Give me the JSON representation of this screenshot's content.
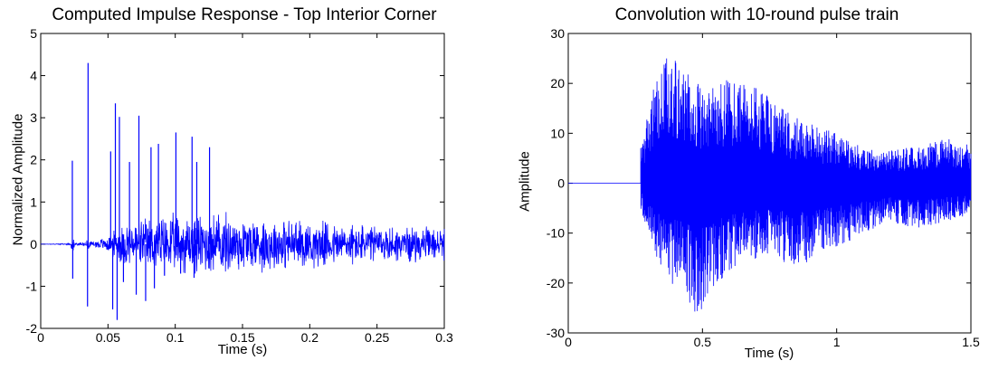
{
  "chart_data": [
    {
      "type": "line",
      "title": "Computed Impulse Response - Top Interior Corner",
      "xlabel": "Time (s)",
      "ylabel": "Normalized Amplitude",
      "xlim": [
        0,
        0.3
      ],
      "ylim": [
        -2,
        5
      ],
      "xticks": [
        "0",
        "0.05",
        "0.1",
        "0.15",
        "0.2",
        "0.25",
        "0.3"
      ],
      "yticks": [
        "-2",
        "-1",
        "0",
        "1",
        "2",
        "3",
        "4",
        "5"
      ],
      "grid": false,
      "color": "#0000ff",
      "series": [
        {
          "spikes": [
            {
              "x": 0.0235,
              "y": 1.98
            },
            {
              "x": 0.0238,
              "y": -0.82
            },
            {
              "x": 0.0352,
              "y": 4.3
            },
            {
              "x": 0.0348,
              "y": -1.48
            },
            {
              "x": 0.052,
              "y": 2.2
            },
            {
              "x": 0.0535,
              "y": -1.55
            },
            {
              "x": 0.0555,
              "y": 3.34
            },
            {
              "x": 0.0568,
              "y": -1.8
            },
            {
              "x": 0.0585,
              "y": 3.02
            },
            {
              "x": 0.0615,
              "y": -0.9
            },
            {
              "x": 0.066,
              "y": 1.95
            },
            {
              "x": 0.071,
              "y": -1.2
            },
            {
              "x": 0.073,
              "y": 3.05
            },
            {
              "x": 0.078,
              "y": -1.35
            },
            {
              "x": 0.082,
              "y": 2.3
            },
            {
              "x": 0.0845,
              "y": -1.05
            },
            {
              "x": 0.0875,
              "y": 2.38
            },
            {
              "x": 0.092,
              "y": -0.75
            },
            {
              "x": 0.1005,
              "y": 2.65
            },
            {
              "x": 0.104,
              "y": -0.7
            },
            {
              "x": 0.1125,
              "y": 2.55
            },
            {
              "x": 0.114,
              "y": -0.8
            },
            {
              "x": 0.1255,
              "y": 2.3
            },
            {
              "x": 0.116,
              "y": 1.95
            }
          ],
          "envelope": [
            [
              0.0,
              0.0
            ],
            [
              0.022,
              0.02
            ],
            [
              0.036,
              0.06
            ],
            [
              0.05,
              0.2
            ],
            [
              0.06,
              0.55
            ],
            [
              0.09,
              0.75
            ],
            [
              0.13,
              0.85
            ],
            [
              0.16,
              0.75
            ],
            [
              0.2,
              0.62
            ],
            [
              0.25,
              0.5
            ],
            [
              0.3,
              0.42
            ]
          ]
        }
      ]
    },
    {
      "type": "line",
      "title": "Convolution with 10-round pulse train",
      "xlabel": "Time (s)",
      "ylabel": "Amplitude",
      "xlim": [
        0,
        1.5
      ],
      "ylim": [
        -30,
        30
      ],
      "xticks": [
        "0",
        "0.5",
        "1",
        "1.5"
      ],
      "yticks": [
        "-30",
        "-20",
        "-10",
        "0",
        "10",
        "20",
        "30"
      ],
      "grid": false,
      "color": "#0000ff",
      "series": [
        {
          "onset": 0.27,
          "envelope_pos": [
            [
              0.27,
              8
            ],
            [
              0.32,
              20
            ],
            [
              0.38,
              26.8
            ],
            [
              0.45,
              23
            ],
            [
              0.5,
              19
            ],
            [
              0.6,
              21
            ],
            [
              0.7,
              19.5
            ],
            [
              0.8,
              15
            ],
            [
              0.9,
              12
            ],
            [
              1.0,
              10
            ],
            [
              1.1,
              7
            ],
            [
              1.2,
              6.5
            ],
            [
              1.3,
              7.5
            ],
            [
              1.4,
              9
            ],
            [
              1.5,
              8
            ]
          ],
          "envelope_neg": [
            [
              0.27,
              -5
            ],
            [
              0.32,
              -14
            ],
            [
              0.38,
              -20
            ],
            [
              0.43,
              -22
            ],
            [
              0.48,
              -27
            ],
            [
              0.55,
              -20
            ],
            [
              0.65,
              -16
            ],
            [
              0.75,
              -15
            ],
            [
              0.85,
              -17
            ],
            [
              0.95,
              -14
            ],
            [
              1.0,
              -13
            ],
            [
              1.1,
              -10
            ],
            [
              1.2,
              -8
            ],
            [
              1.3,
              -9
            ],
            [
              1.4,
              -8
            ],
            [
              1.5,
              -7
            ]
          ]
        }
      ]
    }
  ]
}
